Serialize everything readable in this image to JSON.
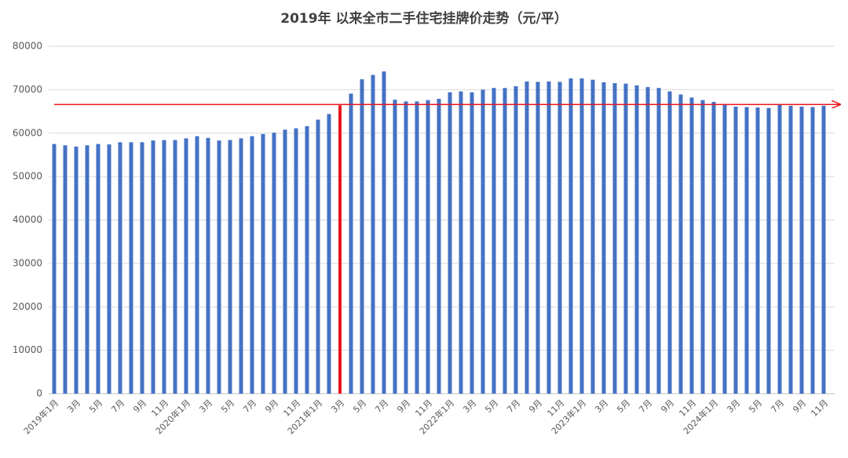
{
  "chart_data": {
    "type": "bar",
    "title": "2019年 以来全市二手住宅挂牌价走势（元/平）",
    "categories": [
      "2019年1月",
      null,
      "3月",
      null,
      "5月",
      null,
      "7月",
      null,
      "9月",
      null,
      "11月",
      null,
      "2020年1月",
      null,
      "3月",
      null,
      "5月",
      null,
      "7月",
      null,
      "9月",
      null,
      "11月",
      null,
      "2021年1月",
      null,
      "3月",
      null,
      "5月",
      null,
      "7月",
      null,
      "9月",
      null,
      "11月",
      null,
      "2022年1月",
      null,
      "3月",
      null,
      "5月",
      null,
      "7月",
      null,
      "9月",
      null,
      "11月",
      null,
      "2023年1月",
      null,
      "3月",
      null,
      "5月",
      null,
      "7月",
      null,
      "9月",
      null,
      "11月",
      null,
      "2024年1月",
      null,
      "3月",
      null,
      "5月",
      null,
      "7月",
      null,
      "9月",
      null,
      "11月"
    ],
    "values": [
      57500,
      57200,
      56900,
      57200,
      57500,
      57400,
      57900,
      57900,
      57900,
      58300,
      58400,
      58400,
      58800,
      59300,
      58900,
      58300,
      58400,
      58800,
      59300,
      59800,
      60100,
      60800,
      61100,
      61600,
      63100,
      64400,
      66400,
      69100,
      72400,
      73400,
      74200,
      67700,
      67300,
      67300,
      67600,
      67900,
      69400,
      69600,
      69400,
      70000,
      70400,
      70400,
      70800,
      71900,
      71800,
      71900,
      71800,
      72600,
      72600,
      72300,
      71700,
      71500,
      71400,
      71000,
      70600,
      70400,
      69600,
      68900,
      68200,
      67600,
      67200,
      66500,
      66100,
      66000,
      65900,
      65800,
      66600,
      66300,
      66100,
      66000,
      66300
    ],
    "color": "#4472c4",
    "highlight": {
      "index": 26,
      "color": "#e8161c"
    },
    "reference_line": {
      "value": 66600,
      "color": "#e8161c"
    },
    "ylim": [
      0,
      80000
    ],
    "yticks": [
      0,
      10000,
      20000,
      30000,
      40000,
      50000,
      60000,
      70000,
      80000
    ],
    "grid": true
  }
}
